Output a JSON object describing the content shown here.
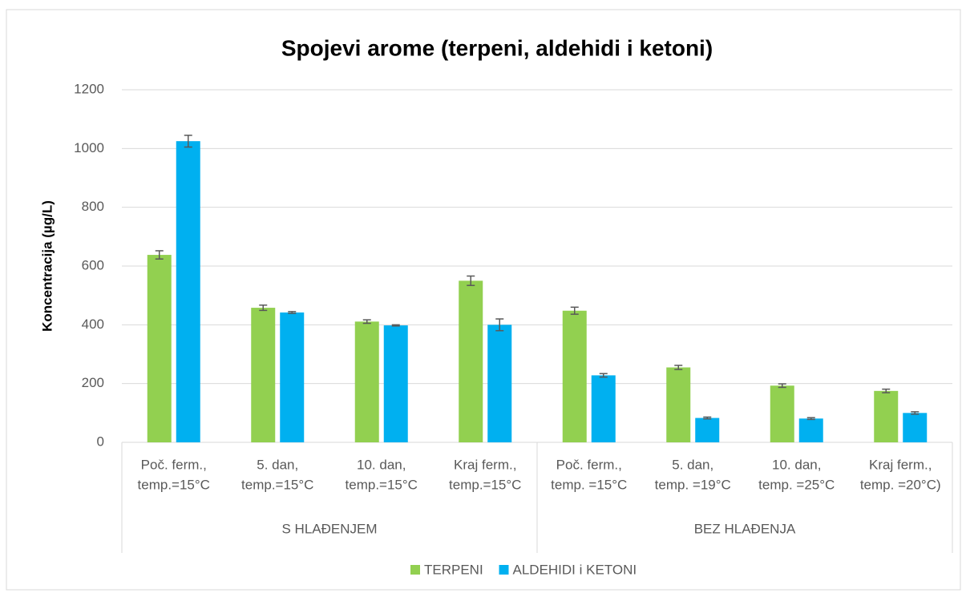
{
  "chart_data": {
    "type": "bar",
    "title": "Spojevi arome (terpeni, aldehidi i ketoni)",
    "y_label": "Koncentracija (µg/L)",
    "groups": [
      {
        "label": "S HLAĐENJEM",
        "categories": [
          [
            "Poč. ferm.,",
            "temp.=15°C"
          ],
          [
            "5. dan,",
            "temp.=15°C"
          ],
          [
            "10. dan,",
            "temp.=15°C"
          ],
          [
            "Kraj ferm.,",
            "temp.=15°C"
          ]
        ]
      },
      {
        "label": "BEZ HLAĐENJA",
        "categories": [
          [
            "Poč. ferm.,",
            "temp. =15°C"
          ],
          [
            "5. dan,",
            "temp. =19°C"
          ],
          [
            "10. dan,",
            "temp. =25°C"
          ],
          [
            "Kraj ferm.,",
            "temp. =20°C)"
          ]
        ]
      }
    ],
    "series": [
      {
        "name": "TERPENI",
        "color": "#92d050",
        "values": [
          638,
          458,
          411,
          550,
          448,
          255,
          193,
          175
        ],
        "errors": [
          14,
          9,
          6,
          16,
          12,
          7,
          6,
          6
        ]
      },
      {
        "name": "ALDEHIDI i KETONI",
        "color": "#00b0f0",
        "values": [
          1025,
          442,
          398,
          400,
          228,
          83,
          81,
          100
        ],
        "errors": [
          20,
          3,
          2,
          20,
          6,
          3,
          3,
          4
        ]
      }
    ],
    "ylim": [
      0,
      1200
    ],
    "yticks": [
      0,
      200,
      400,
      600,
      800,
      1000,
      1200
    ],
    "grid": true,
    "legend": "bottom"
  }
}
